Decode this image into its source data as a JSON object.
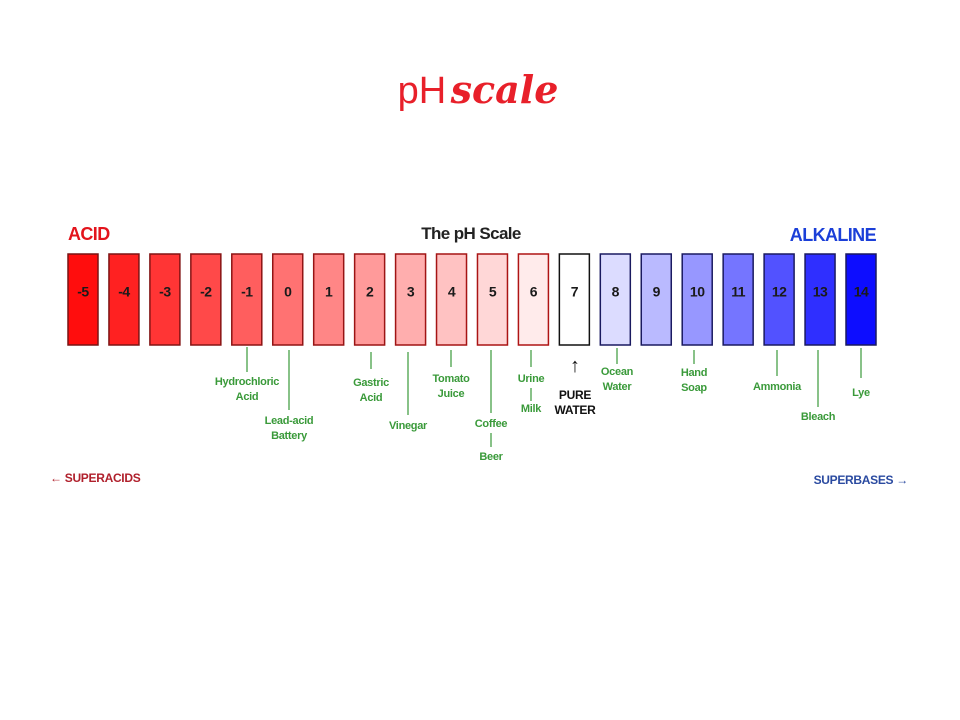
{
  "title": {
    "prefix": "pH",
    "emphasis": "scale"
  },
  "diagram": {
    "title": "The pH Scale",
    "acid": "ACID",
    "alkaline": "ALKALINE",
    "boxes": [
      "-5",
      "-4",
      "-3",
      "-2",
      "-1",
      "0",
      "1",
      "2",
      "3",
      "4",
      "5",
      "6",
      "7",
      "8",
      "9",
      "10",
      "11",
      "12",
      "13",
      "14"
    ],
    "annotations": [
      {
        "lines": [
          "Hydrochloric",
          "Acid"
        ]
      },
      {
        "lines": [
          "Lead-acid",
          "Battery"
        ]
      },
      {
        "lines": [
          "Gastric",
          "Acid"
        ]
      },
      {
        "lines": [
          "Vinegar"
        ]
      },
      {
        "lines": [
          "Tomato",
          "Juice"
        ]
      },
      {
        "lines": [
          "Coffee"
        ]
      },
      {
        "lines": [
          "Beer"
        ]
      },
      {
        "lines": [
          "Urine"
        ]
      },
      {
        "lines": [
          "Milk"
        ]
      },
      {
        "lines": [
          "Ocean",
          "Water"
        ]
      },
      {
        "lines": [
          "Hand",
          "Soap"
        ]
      },
      {
        "lines": [
          "Ammonia"
        ]
      },
      {
        "lines": [
          "Bleach"
        ]
      },
      {
        "lines": [
          "Lye"
        ]
      }
    ],
    "pure_water": {
      "arrow": "↑",
      "lines": [
        "PURE",
        "WATER"
      ]
    },
    "superacids": "← SUPERACIDS",
    "superbases": "SUPERBASES →"
  }
}
